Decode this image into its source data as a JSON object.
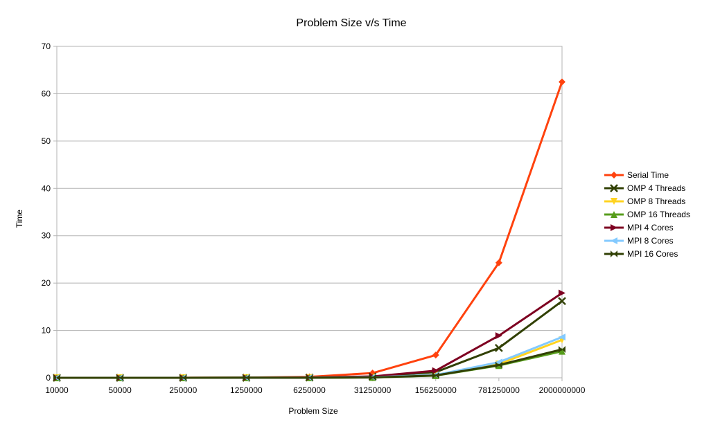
{
  "chart_data": {
    "type": "line",
    "title": "Problem Size v/s Time",
    "xlabel": "Problem Size",
    "ylabel": "Time",
    "categories": [
      "10000",
      "50000",
      "250000",
      "1250000",
      "6250000",
      "31250000",
      "156250000",
      "781250000",
      "2000000000"
    ],
    "ylim": [
      0,
      70
    ],
    "yticks": [
      0,
      10,
      20,
      30,
      40,
      50,
      60,
      70
    ],
    "grid": true,
    "legend_position": "right",
    "series": [
      {
        "name": "Serial Time",
        "color": "#ff420e",
        "marker": "diamond",
        "values": [
          0,
          0,
          0.01,
          0.04,
          0.2,
          1.0,
          4.8,
          24.3,
          62.5
        ]
      },
      {
        "name": "OMP 4 Threads",
        "color": "#314004",
        "marker": "x",
        "values": [
          0,
          0,
          0,
          0.01,
          0.05,
          0.25,
          1.2,
          6.3,
          16.2
        ]
      },
      {
        "name": "OMP 8 Threads",
        "color": "#ffd320",
        "marker": "triangle-down",
        "values": [
          0,
          0,
          0,
          0.01,
          0.03,
          0.1,
          0.55,
          2.9,
          8.0
        ]
      },
      {
        "name": "OMP 16 Threads",
        "color": "#579d1c",
        "marker": "triangle-up",
        "values": [
          0,
          0,
          0,
          0.01,
          0.02,
          0.08,
          0.45,
          2.6,
          5.6
        ]
      },
      {
        "name": "MPI 4 Cores",
        "color": "#7e0021",
        "marker": "triangle-right",
        "values": [
          0,
          0,
          0,
          0.01,
          0.06,
          0.3,
          1.5,
          8.9,
          17.9
        ]
      },
      {
        "name": "MPI 8 Cores",
        "color": "#83caff",
        "marker": "triangle-left",
        "values": [
          0,
          0,
          0,
          0.01,
          0.03,
          0.12,
          0.6,
          3.3,
          8.6
        ]
      },
      {
        "name": "MPI 16 Cores",
        "color": "#314004",
        "marker": "bowtie",
        "values": [
          0,
          0,
          0,
          0.01,
          0.02,
          0.08,
          0.5,
          2.7,
          6.0
        ]
      }
    ]
  }
}
